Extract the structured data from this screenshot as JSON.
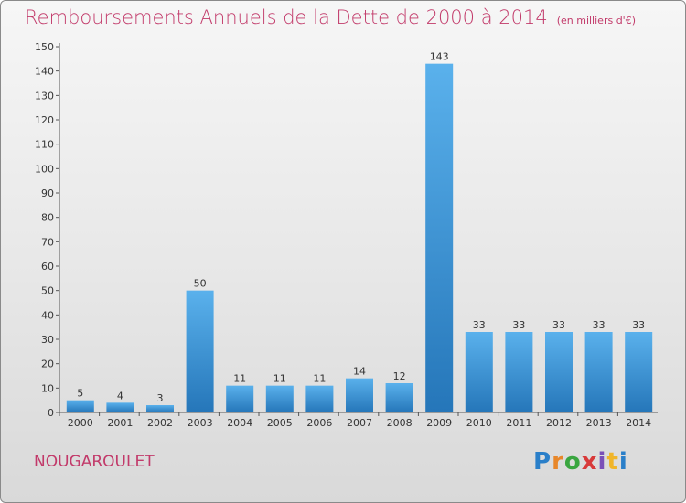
{
  "title": "Remboursements Annuels de la Dette de 2000 à 2014",
  "unit_note": "(en milliers d'€)",
  "city": "NOUGAROULET",
  "logo": "Proxiti",
  "colors": {
    "title": "#c23a6a",
    "bar_top": "#5ab1ec",
    "bar_bottom": "#2576b9",
    "axis": "#555555",
    "grid": "#cfcfcf"
  },
  "chart_data": {
    "type": "bar",
    "title": "Remboursements Annuels de la Dette de 2000 à 2014",
    "xlabel": "",
    "ylabel": "",
    "categories": [
      "2000",
      "2001",
      "2002",
      "2003",
      "2004",
      "2005",
      "2006",
      "2007",
      "2008",
      "2009",
      "2010",
      "2011",
      "2012",
      "2013",
      "2014"
    ],
    "values": [
      5,
      4,
      3,
      50,
      11,
      11,
      11,
      14,
      12,
      143,
      33,
      33,
      33,
      33,
      33
    ],
    "data_labels": [
      "5",
      "4",
      "3",
      "50",
      "11",
      "11",
      "11",
      "14",
      "12",
      "143",
      "33",
      "33",
      "33",
      "33",
      "33"
    ],
    "ylim": [
      0,
      150
    ],
    "yticks": [
      0,
      10,
      20,
      30,
      40,
      50,
      60,
      70,
      80,
      90,
      100,
      110,
      120,
      130,
      140,
      150
    ],
    "grid": false,
    "legend": "none"
  }
}
